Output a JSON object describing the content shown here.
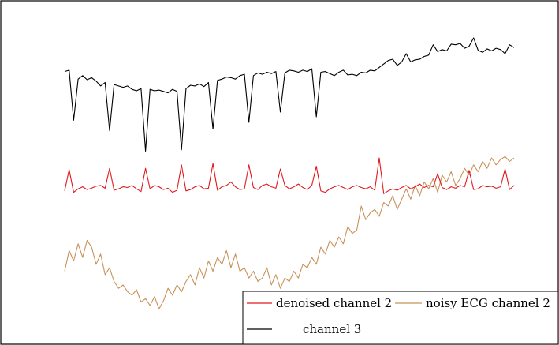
{
  "chart_data": {
    "type": "line",
    "title": "",
    "xlabel": "",
    "ylabel": "",
    "grid": false,
    "axes_visible": false,
    "legend_placement": "bottom-right",
    "x": [
      0,
      0.01,
      0.02,
      0.03,
      0.04,
      0.05,
      0.06,
      0.07,
      0.08,
      0.09,
      0.1,
      0.11,
      0.12,
      0.13,
      0.14,
      0.15,
      0.16,
      0.17,
      0.18,
      0.19,
      0.2,
      0.21,
      0.22,
      0.23,
      0.24,
      0.25,
      0.26,
      0.27,
      0.28,
      0.29,
      0.3,
      0.31,
      0.32,
      0.33,
      0.34,
      0.35,
      0.36,
      0.37,
      0.38,
      0.39,
      0.4,
      0.41,
      0.42,
      0.43,
      0.44,
      0.45,
      0.46,
      0.47,
      0.48,
      0.49,
      0.5,
      0.51,
      0.52,
      0.53,
      0.54,
      0.55,
      0.56,
      0.57,
      0.58,
      0.59,
      0.6,
      0.61,
      0.62,
      0.63,
      0.64,
      0.65,
      0.66,
      0.67,
      0.68,
      0.69,
      0.7,
      0.71,
      0.72,
      0.73,
      0.74,
      0.75,
      0.76,
      0.77,
      0.78,
      0.79,
      0.8,
      0.81,
      0.82,
      0.83,
      0.84,
      0.85,
      0.86,
      0.87,
      0.88,
      0.89,
      0.9,
      0.91,
      0.92,
      0.93,
      0.94,
      0.95,
      0.96,
      0.97,
      0.98,
      0.99,
      1
    ],
    "ylim": [
      -3.0,
      1.2
    ],
    "series": [
      {
        "name": "channel 3",
        "color": "#000000",
        "values": [
          0.56,
          0.58,
          -0.15,
          0.45,
          0.5,
          0.44,
          0.47,
          0.42,
          0.35,
          0.4,
          -0.3,
          0.37,
          0.35,
          0.33,
          0.35,
          0.3,
          0.28,
          0.31,
          -0.6,
          0.3,
          0.28,
          0.29,
          0.27,
          0.25,
          0.3,
          0.27,
          -0.58,
          0.31,
          0.36,
          0.35,
          0.38,
          0.34,
          0.4,
          -0.28,
          0.43,
          0.45,
          0.48,
          0.47,
          0.45,
          0.5,
          0.52,
          -0.18,
          0.5,
          0.54,
          0.52,
          0.55,
          0.53,
          0.56,
          -0.03,
          0.54,
          0.58,
          0.57,
          0.55,
          0.58,
          0.56,
          0.6,
          -0.1,
          0.55,
          0.56,
          0.53,
          0.5,
          0.55,
          0.58,
          0.51,
          0.52,
          0.5,
          0.55,
          0.54,
          0.58,
          0.57,
          0.62,
          0.67,
          0.72,
          0.74,
          0.65,
          0.7,
          0.82,
          0.7,
          0.73,
          0.74,
          0.78,
          0.8,
          0.95,
          0.85,
          0.88,
          0.86,
          0.96,
          0.95,
          0.97,
          0.9,
          0.93,
          1.05,
          0.87,
          0.84,
          0.89,
          0.86,
          0.9,
          0.88,
          0.82,
          0.95,
          0.91
        ]
      },
      {
        "name": "denoised channel 2",
        "color": "#e0191e",
        "values": [
          -1.18,
          -0.87,
          -1.2,
          -1.15,
          -1.12,
          -1.16,
          -1.14,
          -1.11,
          -1.1,
          -1.14,
          -0.85,
          -1.17,
          -1.15,
          -1.12,
          -1.13,
          -1.1,
          -1.15,
          -1.19,
          -0.85,
          -1.15,
          -1.1,
          -1.12,
          -1.16,
          -1.14,
          -1.2,
          -1.17,
          -0.8,
          -1.18,
          -1.16,
          -1.12,
          -1.1,
          -1.15,
          -1.14,
          -0.78,
          -1.17,
          -1.12,
          -1.1,
          -1.05,
          -1.12,
          -1.16,
          -1.15,
          -0.8,
          -1.13,
          -1.16,
          -1.1,
          -1.08,
          -1.12,
          -1.14,
          -0.86,
          -1.1,
          -1.15,
          -1.12,
          -1.08,
          -1.13,
          -1.16,
          -1.1,
          -0.82,
          -1.18,
          -1.2,
          -1.15,
          -1.12,
          -1.1,
          -1.13,
          -1.16,
          -1.12,
          -1.1,
          -1.13,
          -1.15,
          -1.12,
          -1.17,
          -0.7,
          -1.22,
          -1.18,
          -1.15,
          -1.17,
          -1.13,
          -1.1,
          -1.15,
          -1.12,
          -1.08,
          -1.13,
          -1.1,
          -1.12,
          -0.93,
          -1.13,
          -1.16,
          -1.12,
          -1.14,
          -1.1,
          -1.12,
          -0.88,
          -1.16,
          -1.15,
          -1.1,
          -1.12,
          -1.11,
          -1.14,
          -1.12,
          -0.86,
          -1.16,
          -1.1
        ]
      },
      {
        "name": "noisy ECG channel 2",
        "color": "#c8925a",
        "values": [
          -2.35,
          -2.05,
          -2.2,
          -1.95,
          -2.15,
          -1.9,
          -2.0,
          -2.25,
          -2.1,
          -2.4,
          -2.3,
          -2.5,
          -2.6,
          -2.55,
          -2.65,
          -2.7,
          -2.62,
          -2.8,
          -2.75,
          -2.85,
          -2.72,
          -2.9,
          -2.78,
          -2.6,
          -2.7,
          -2.55,
          -2.65,
          -2.5,
          -2.4,
          -2.55,
          -2.3,
          -2.45,
          -2.2,
          -2.35,
          -2.15,
          -2.25,
          -2.05,
          -2.3,
          -2.1,
          -2.35,
          -2.3,
          -2.45,
          -2.35,
          -2.5,
          -2.45,
          -2.3,
          -2.55,
          -2.4,
          -2.6,
          -2.45,
          -2.5,
          -2.35,
          -2.45,
          -2.25,
          -2.3,
          -2.15,
          -2.25,
          -2.0,
          -2.1,
          -1.9,
          -2.0,
          -1.85,
          -1.95,
          -1.7,
          -1.8,
          -1.75,
          -1.4,
          -1.6,
          -1.5,
          -1.45,
          -1.55,
          -1.35,
          -1.4,
          -1.25,
          -1.45,
          -1.3,
          -1.15,
          -1.3,
          -1.1,
          -1.25,
          -1.05,
          -1.15,
          -1.0,
          -1.2,
          -0.95,
          -1.05,
          -0.9,
          -1.1,
          -1.0,
          -0.85,
          -0.95,
          -0.8,
          -0.9,
          -0.75,
          -0.85,
          -0.7,
          -0.8,
          -0.72,
          -0.68,
          -0.75,
          -0.7
        ]
      }
    ]
  },
  "legend": {
    "items": [
      {
        "label": "denoised channel 2",
        "color": "#e0191e"
      },
      {
        "label": "noisy ECG channel 2",
        "color": "#c8925a"
      },
      {
        "label": "channel 3",
        "color": "#000000"
      }
    ]
  }
}
